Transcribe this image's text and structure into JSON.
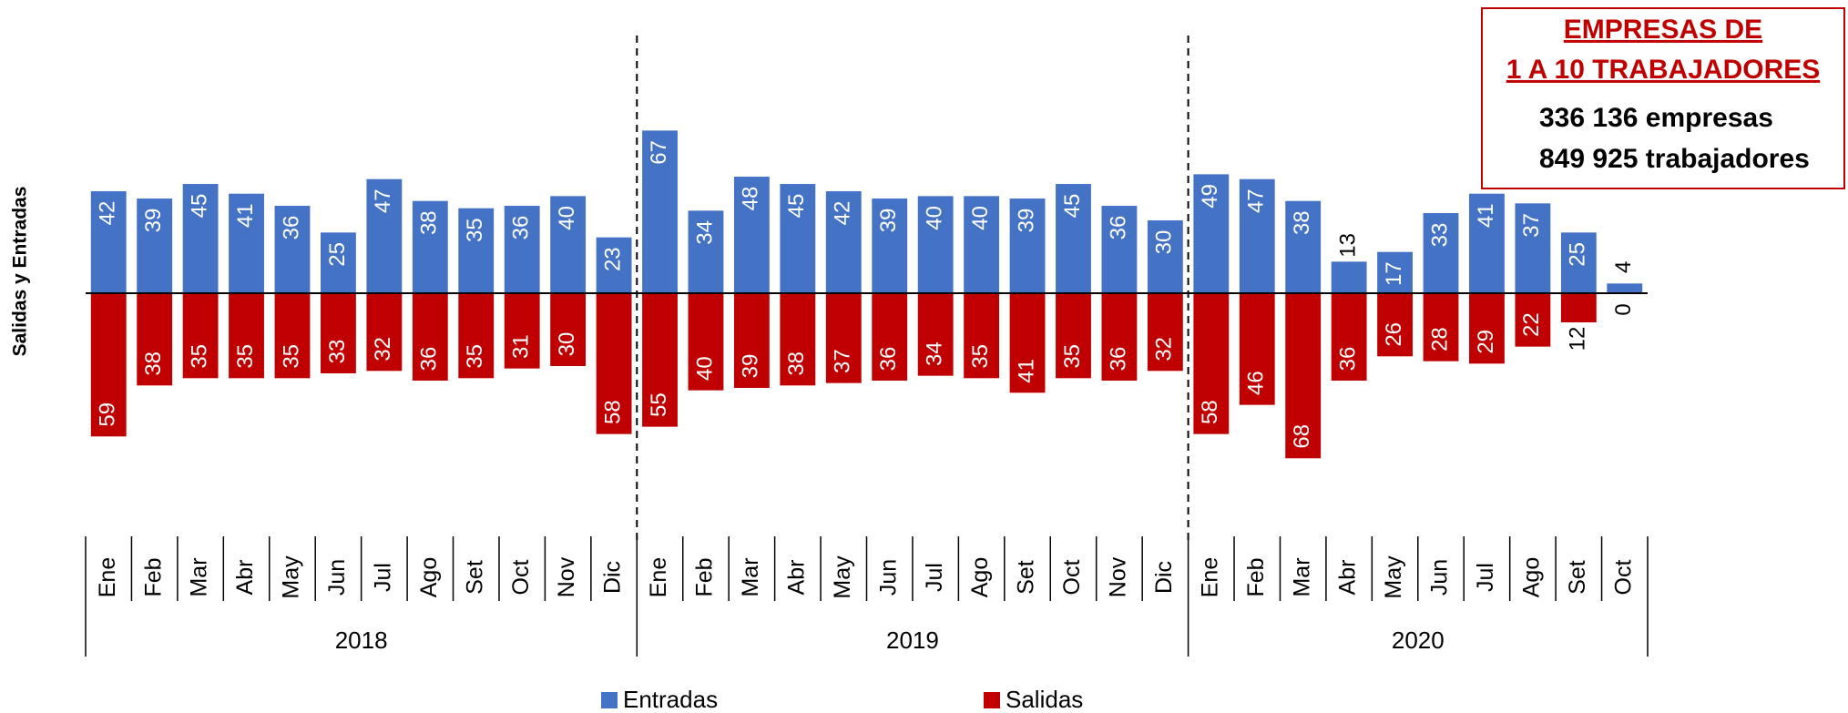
{
  "chart_data": {
    "type": "bar",
    "y_label": "Salidas  y  Entradas",
    "groups": [
      {
        "label": "2018",
        "categories": [
          "Ene",
          "Feb",
          "Mar",
          "Abr",
          "May",
          "Jun",
          "Jul",
          "Ago",
          "Set",
          "Oct",
          "Nov",
          "Dic"
        ]
      },
      {
        "label": "2019",
        "categories": [
          "Ene",
          "Feb",
          "Mar",
          "Abr",
          "May",
          "Jun",
          "Jul",
          "Ago",
          "Set",
          "Oct",
          "Nov",
          "Dic"
        ]
      },
      {
        "label": "2020",
        "categories": [
          "Ene",
          "Feb",
          "Mar",
          "Abr",
          "May",
          "Jun",
          "Jul",
          "Ago",
          "Set",
          "Oct"
        ]
      }
    ],
    "series": [
      {
        "name": "Entradas",
        "color": "#4472c4",
        "direction": "up",
        "values": [
          42,
          39,
          45,
          41,
          36,
          25,
          47,
          38,
          35,
          36,
          40,
          23,
          67,
          34,
          48,
          45,
          42,
          39,
          40,
          40,
          39,
          45,
          36,
          30,
          49,
          47,
          38,
          13,
          17,
          33,
          41,
          37,
          25,
          4
        ]
      },
      {
        "name": "Salidas",
        "color": "#c00000",
        "direction": "down",
        "values": [
          59,
          38,
          35,
          35,
          35,
          33,
          32,
          36,
          35,
          31,
          30,
          58,
          55,
          40,
          39,
          38,
          37,
          36,
          34,
          35,
          41,
          35,
          36,
          32,
          58,
          46,
          68,
          36,
          26,
          28,
          29,
          22,
          12,
          0
        ]
      }
    ],
    "annotation": {
      "title": [
        "EMPRESAS DE",
        "1 A 10 TRABAJADORES"
      ],
      "lines": [
        "336 136 empresas",
        "849 925 trabajadores"
      ],
      "color": "#c00000"
    }
  }
}
